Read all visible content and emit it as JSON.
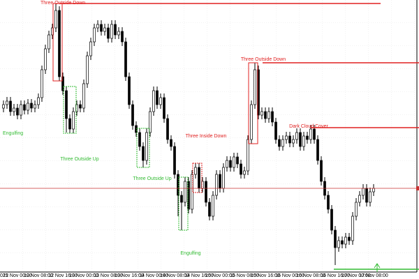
{
  "chart_data": {
    "type": "candlestick",
    "ylim": [
      0,
      390
    ],
    "categories": [
      "025",
      null,
      null,
      null,
      "12 Nov 00:00",
      null,
      null,
      null,
      null,
      null,
      "12 Nov 08:00",
      null,
      null,
      null,
      null,
      null,
      null,
      "12 Nov 16:00",
      null,
      null,
      null,
      null,
      null,
      "13 Nov 00:00",
      null,
      null,
      null,
      null,
      null,
      null,
      "13 Nov 08:00",
      null,
      null,
      null,
      null,
      null,
      "13 Nov 16:00",
      null,
      null,
      null,
      null,
      null,
      null,
      "14 Nov 00:00",
      null,
      null,
      null,
      null,
      null,
      "14 Nov 08:00",
      null,
      null,
      null,
      null,
      null,
      null,
      "14 Nov 16:00",
      null,
      null,
      null,
      null,
      null,
      "15 Nov 00:00",
      null,
      null,
      null,
      null,
      null,
      null,
      "15 Nov 08:00",
      null,
      null,
      null,
      null,
      null,
      "15 Nov 16:00",
      null,
      null,
      null,
      null,
      null,
      null,
      "16 Nov 00:00",
      null,
      null,
      null,
      null,
      null,
      "16 Nov 08:00",
      null,
      null,
      null,
      null,
      null,
      null,
      "16 Nov 16:00",
      null,
      null,
      null,
      null,
      null,
      "17 Nov 00:00",
      null,
      null,
      null,
      null,
      "17 Nov 08:00"
    ],
    "open": [
      235,
      240,
      245,
      230,
      235,
      225,
      240,
      232,
      242,
      235,
      240,
      250,
      290,
      320,
      340,
      350,
      375,
      280,
      260,
      220,
      205,
      230,
      240,
      235,
      270,
      310,
      330,
      350,
      355,
      345,
      350,
      335,
      355,
      340,
      345,
      330,
      280,
      240,
      210,
      200,
      180,
      160,
      200,
      230,
      260,
      240,
      250,
      220,
      190,
      180,
      140,
      110,
      100,
      130,
      90,
      140,
      150,
      120,
      130,
      100,
      80,
      110,
      140,
      120,
      150,
      160,
      150,
      165,
      155,
      140,
      145,
      190,
      240,
      290,
      225,
      230,
      220,
      230,
      215,
      190,
      180,
      190,
      195,
      185,
      190,
      200,
      180,
      195,
      190,
      205,
      190,
      160,
      130,
      110,
      90,
      60,
      35,
      45,
      40,
      50,
      45,
      80,
      100,
      110,
      120,
      100,
      115
    ],
    "high": [
      246,
      251,
      251,
      241,
      241,
      246,
      246,
      248,
      248,
      246,
      256,
      296,
      326,
      346,
      356,
      385,
      381,
      286,
      266,
      226,
      236,
      246,
      246,
      276,
      316,
      336,
      356,
      361,
      361,
      356,
      356,
      361,
      361,
      351,
      351,
      336,
      286,
      246,
      216,
      206,
      186,
      206,
      236,
      266,
      266,
      256,
      256,
      226,
      196,
      186,
      146,
      116,
      136,
      136,
      146,
      156,
      156,
      136,
      136,
      106,
      116,
      146,
      146,
      156,
      166,
      166,
      171,
      171,
      161,
      151,
      196,
      246,
      300,
      296,
      236,
      236,
      236,
      236,
      221,
      196,
      196,
      201,
      201,
      196,
      206,
      206,
      201,
      201,
      211,
      211,
      196,
      166,
      136,
      116,
      96,
      66,
      51,
      51,
      56,
      56,
      86,
      106,
      116,
      126,
      126,
      121,
      126
    ],
    "low": [
      229,
      234,
      224,
      224,
      219,
      219,
      226,
      226,
      229,
      229,
      234,
      244,
      284,
      314,
      334,
      344,
      274,
      254,
      200,
      199,
      199,
      224,
      229,
      229,
      264,
      304,
      324,
      344,
      339,
      339,
      329,
      329,
      334,
      334,
      324,
      274,
      234,
      204,
      194,
      174,
      150,
      154,
      194,
      224,
      234,
      234,
      214,
      184,
      174,
      134,
      80,
      60,
      94,
      84,
      84,
      134,
      114,
      114,
      94,
      74,
      74,
      104,
      114,
      114,
      144,
      144,
      144,
      149,
      134,
      134,
      139,
      184,
      234,
      219,
      219,
      214,
      214,
      209,
      184,
      174,
      174,
      184,
      179,
      179,
      184,
      174,
      174,
      184,
      184,
      184,
      154,
      124,
      104,
      84,
      54,
      10,
      29,
      34,
      34,
      39,
      39,
      74,
      94,
      104,
      94,
      94,
      109
    ],
    "close": [
      240,
      245,
      230,
      235,
      225,
      240,
      232,
      242,
      235,
      240,
      250,
      290,
      320,
      340,
      350,
      375,
      280,
      260,
      220,
      205,
      230,
      240,
      235,
      270,
      310,
      330,
      350,
      355,
      345,
      350,
      335,
      355,
      340,
      345,
      330,
      280,
      240,
      210,
      200,
      180,
      160,
      200,
      230,
      260,
      240,
      250,
      220,
      190,
      180,
      140,
      110,
      100,
      130,
      90,
      140,
      150,
      120,
      130,
      100,
      80,
      110,
      140,
      120,
      150,
      160,
      150,
      165,
      155,
      140,
      145,
      190,
      240,
      290,
      225,
      230,
      220,
      230,
      215,
      190,
      180,
      190,
      195,
      185,
      190,
      200,
      180,
      195,
      190,
      205,
      190,
      160,
      130,
      110,
      90,
      60,
      35,
      45,
      40,
      50,
      45,
      80,
      100,
      110,
      120,
      100,
      115,
      120
    ],
    "up_color": "#ffffff",
    "down_color": "#000000",
    "wick_color": "#000000",
    "price_line_color": "#c83232",
    "grid": true,
    "annotations": [
      {
        "text": "Three Outside Down",
        "color": "#e02020"
      },
      {
        "text": "Engulfing",
        "color": "#33bb33"
      },
      {
        "text": "Three Outside Up",
        "color": "#33bb33"
      },
      {
        "text": "Three Outside Up",
        "color": "#33bb33"
      },
      {
        "text": "Three Inside Down",
        "color": "#e02020"
      },
      {
        "text": "Engulfing",
        "color": "#33bb33"
      },
      {
        "text": "Three Outside Down",
        "color": "#e02020"
      },
      {
        "text": "Dark Cloud Cover",
        "color": "#e02020"
      }
    ]
  }
}
